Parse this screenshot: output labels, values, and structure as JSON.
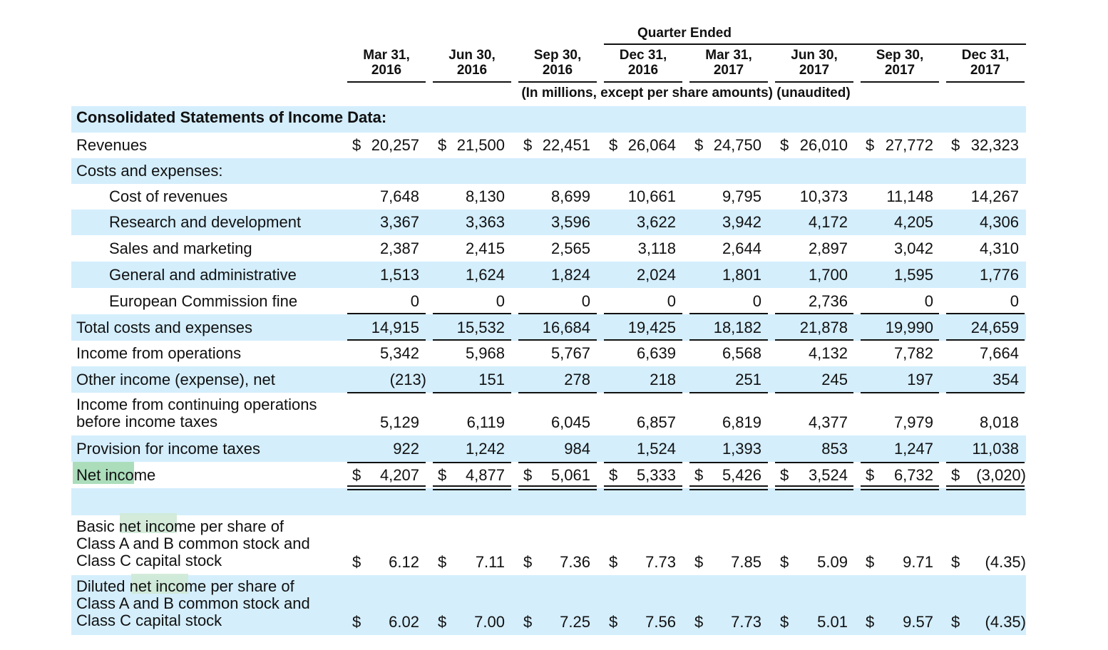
{
  "header": {
    "period_title": "Quarter Ended",
    "subtitle": "(In millions, except per share amounts) (unaudited)",
    "columns": [
      {
        "line1": "Mar 31,",
        "line2": "2016"
      },
      {
        "line1": "Jun 30,",
        "line2": "2016"
      },
      {
        "line1": "Sep 30,",
        "line2": "2016"
      },
      {
        "line1": "Dec 31,",
        "line2": "2016"
      },
      {
        "line1": "Mar 31,",
        "line2": "2017"
      },
      {
        "line1": "Jun 30,",
        "line2": "2017"
      },
      {
        "line1": "Sep 30,",
        "line2": "2017"
      },
      {
        "line1": "Dec 31,",
        "line2": "2017"
      }
    ]
  },
  "section_title": "Consolidated Statements of Income Data:",
  "rows": [
    {
      "label": [
        "Revenues"
      ],
      "values": [
        "20,257",
        "21,500",
        "22,451",
        "26,064",
        "24,750",
        "26,010",
        "27,772",
        "32,323"
      ],
      "dollar": true,
      "band": false
    },
    {
      "label": [
        "Costs and expenses:"
      ],
      "values": [],
      "band": true
    },
    {
      "label": [
        "Cost of revenues"
      ],
      "values": [
        "7,648",
        "8,130",
        "8,699",
        "10,661",
        "9,795",
        "10,373",
        "11,148",
        "14,267"
      ],
      "indent": true,
      "band": false
    },
    {
      "label": [
        "Research and development"
      ],
      "values": [
        "3,367",
        "3,363",
        "3,596",
        "3,622",
        "3,942",
        "4,172",
        "4,205",
        "4,306"
      ],
      "indent": true,
      "band": true
    },
    {
      "label": [
        "Sales and marketing"
      ],
      "values": [
        "2,387",
        "2,415",
        "2,565",
        "3,118",
        "2,644",
        "2,897",
        "3,042",
        "4,310"
      ],
      "indent": true,
      "band": false
    },
    {
      "label": [
        "General and administrative"
      ],
      "values": [
        "1,513",
        "1,624",
        "1,824",
        "2,024",
        "1,801",
        "1,700",
        "1,595",
        "1,776"
      ],
      "indent": true,
      "band": true
    },
    {
      "label": [
        "European Commission fine"
      ],
      "values": [
        "0",
        "0",
        "0",
        "0",
        "0",
        "2,736",
        "0",
        "0"
      ],
      "indent": true,
      "band": false
    },
    {
      "label": [
        "Total costs and expenses"
      ],
      "values": [
        "14,915",
        "15,532",
        "16,684",
        "19,425",
        "18,182",
        "21,878",
        "19,990",
        "24,659"
      ],
      "band": true
    },
    {
      "label": [
        "Income from operations"
      ],
      "values": [
        "5,342",
        "5,968",
        "5,767",
        "6,639",
        "6,568",
        "4,132",
        "7,782",
        "7,664"
      ],
      "band": false
    },
    {
      "label": [
        "Other income (expense), net"
      ],
      "values": [
        "(213)",
        "151",
        "278",
        "218",
        "251",
        "245",
        "197",
        "354"
      ],
      "band": true
    },
    {
      "label": [
        "Income from continuing operations",
        "before income taxes"
      ],
      "values": [
        "5,129",
        "6,119",
        "6,045",
        "6,857",
        "6,819",
        "4,377",
        "7,979",
        "8,018"
      ],
      "band": false
    },
    {
      "label": [
        "Provision for income taxes"
      ],
      "values": [
        "922",
        "1,242",
        "984",
        "1,524",
        "1,393",
        "853",
        "1,247",
        "11,038"
      ],
      "band": true
    },
    {
      "label": [
        "Net income"
      ],
      "values": [
        "4,207",
        "4,877",
        "5,061",
        "5,333",
        "5,426",
        "3,524",
        "6,732",
        "(3,020)"
      ],
      "dollar": true,
      "band": false
    },
    {
      "label": [],
      "values": [],
      "band": true
    },
    {
      "label": [
        "Basic net income per share of",
        "Class A and B common stock and",
        "Class C capital stock"
      ],
      "values": [
        "6.12",
        "7.11",
        "7.36",
        "7.73",
        "7.85",
        "5.09",
        "9.71",
        "(4.35)"
      ],
      "dollar": true,
      "band": false
    },
    {
      "label": [
        "Diluted net income per share of",
        "Class A and B common stock and",
        "Class C capital stock"
      ],
      "values": [
        "6.02",
        "7.00",
        "7.25",
        "7.56",
        "7.73",
        "5.01",
        "9.57",
        "(4.35)"
      ],
      "dollar": true,
      "band": true
    }
  ],
  "currency_symbol": "$",
  "colors": {
    "band": "#d4eefc",
    "highlight": "#8fd1a4"
  }
}
